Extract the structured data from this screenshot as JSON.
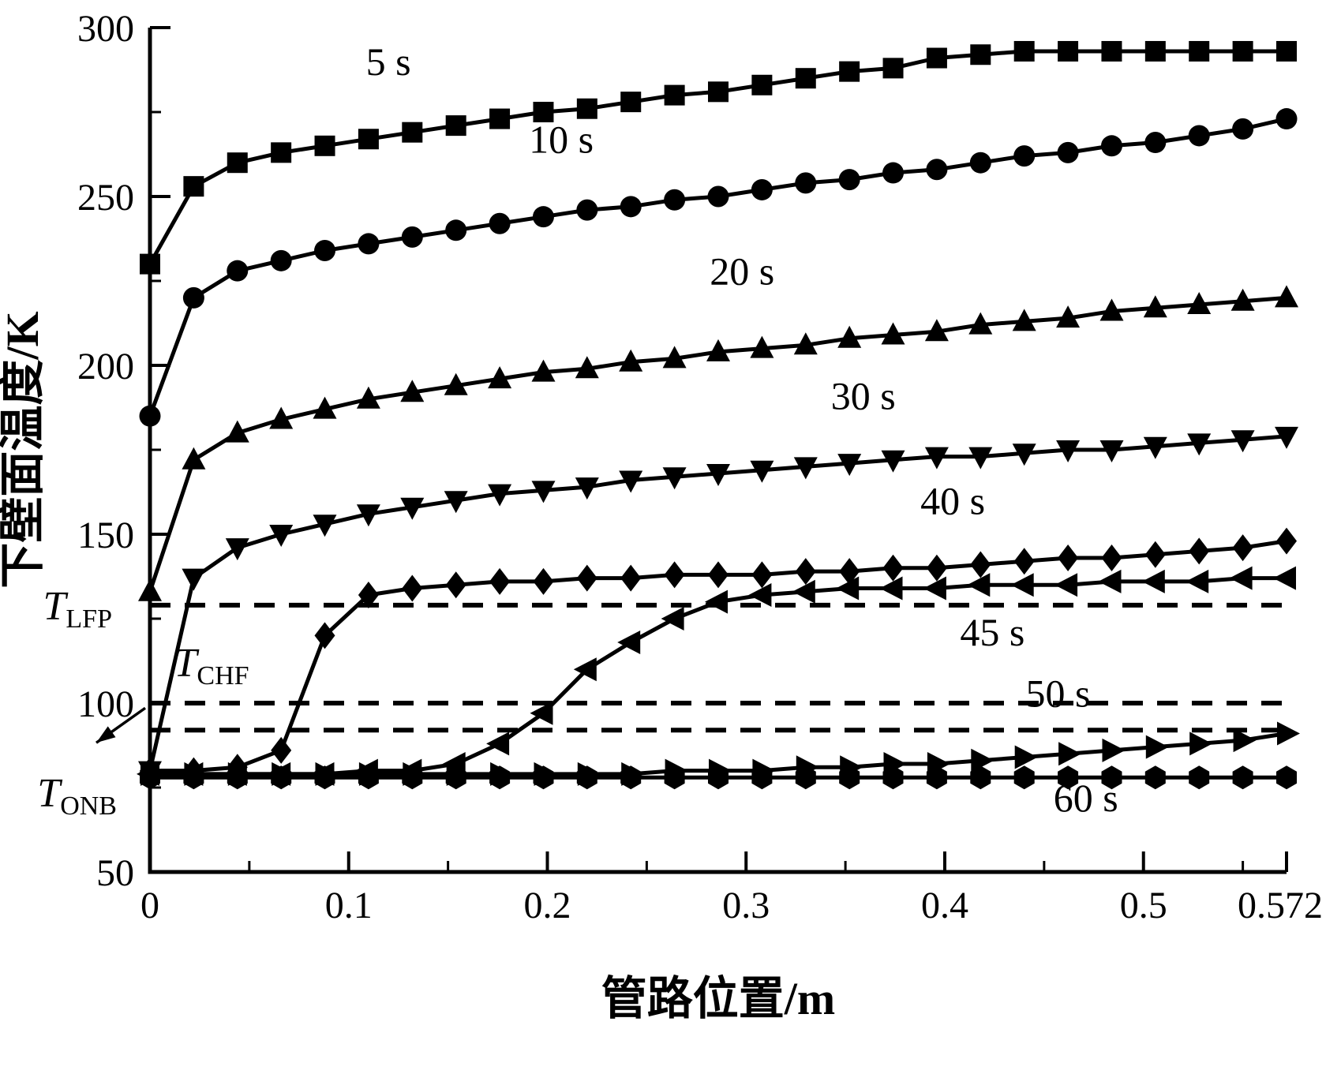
{
  "page": {
    "background": "#ffffff",
    "foreground": "#000000"
  },
  "chart_data": {
    "type": "line",
    "title": "",
    "xlabel": "管路位置/m",
    "ylabel": "下壁面温度/K",
    "xlim": [
      0,
      0.572
    ],
    "ylim": [
      50,
      300
    ],
    "x_ticks": [
      0,
      0.1,
      0.2,
      0.3,
      0.4,
      0.5,
      0.572
    ],
    "x_tick_labels": [
      "0",
      "0.1",
      "0.2",
      "0.3",
      "0.4",
      "0.5",
      "0.572"
    ],
    "x_minor_ticks": [
      0.05,
      0.15,
      0.25,
      0.35,
      0.45,
      0.55
    ],
    "y_ticks": [
      50,
      100,
      150,
      200,
      250,
      300
    ],
    "y_tick_labels": [
      "50",
      "100",
      "150",
      "200",
      "250",
      "300"
    ],
    "y_minor_ticks": [
      75,
      125,
      175,
      225,
      275
    ],
    "grid": false,
    "legend": "inline-labels",
    "line_color": "#000000",
    "x": [
      0,
      0.022,
      0.044,
      0.066,
      0.088,
      0.11,
      0.132,
      0.154,
      0.176,
      0.198,
      0.22,
      0.242,
      0.264,
      0.286,
      0.308,
      0.33,
      0.352,
      0.374,
      0.396,
      0.418,
      0.44,
      0.462,
      0.484,
      0.506,
      0.528,
      0.55,
      0.572
    ],
    "series": [
      {
        "name": "5 s",
        "marker": "square",
        "label_pos": [
          0.12,
          286
        ],
        "values": [
          230,
          253,
          260,
          263,
          265,
          267,
          269,
          271,
          273,
          275,
          276,
          278,
          280,
          281,
          283,
          285,
          287,
          288,
          291,
          292,
          293,
          293,
          293,
          293,
          293,
          293,
          293
        ]
      },
      {
        "name": "10 s",
        "marker": "circle",
        "label_pos": [
          0.207,
          263
        ],
        "values": [
          185,
          220,
          228,
          231,
          234,
          236,
          238,
          240,
          242,
          244,
          246,
          247,
          249,
          250,
          252,
          254,
          255,
          257,
          258,
          260,
          262,
          263,
          265,
          266,
          268,
          270,
          273
        ]
      },
      {
        "name": "20 s",
        "marker": "triangle-up",
        "label_pos": [
          0.298,
          224
        ],
        "values": [
          133,
          172,
          180,
          184,
          187,
          190,
          192,
          194,
          196,
          198,
          199,
          201,
          202,
          204,
          205,
          206,
          208,
          209,
          210,
          212,
          213,
          214,
          216,
          217,
          218,
          219,
          220
        ]
      },
      {
        "name": "30 s",
        "marker": "triangle-down",
        "label_pos": [
          0.359,
          187
        ],
        "values": [
          80,
          137,
          146,
          150,
          153,
          156,
          158,
          160,
          162,
          163,
          164,
          166,
          167,
          168,
          169,
          170,
          171,
          172,
          173,
          173,
          174,
          175,
          175,
          176,
          177,
          178,
          179
        ]
      },
      {
        "name": "40 s",
        "marker": "diamond",
        "label_pos": [
          0.404,
          156
        ],
        "values": [
          80,
          80,
          81,
          86,
          120,
          132,
          134,
          135,
          136,
          136,
          137,
          137,
          138,
          138,
          138,
          139,
          139,
          140,
          140,
          141,
          142,
          143,
          143,
          144,
          145,
          146,
          148
        ]
      },
      {
        "name": "45 s",
        "marker": "triangle-left",
        "label_pos": [
          0.424,
          117
        ],
        "values": [
          79,
          79,
          79,
          79,
          79,
          80,
          80,
          82,
          88,
          97,
          110,
          118,
          125,
          130,
          132,
          133,
          134,
          134,
          134,
          135,
          135,
          135,
          136,
          136,
          136,
          137,
          137
        ]
      },
      {
        "name": "50 s",
        "marker": "triangle-right",
        "label_pos": [
          0.457,
          99
        ],
        "values": [
          79,
          79,
          79,
          79,
          79,
          79,
          79,
          79,
          79,
          79,
          79,
          79,
          80,
          80,
          80,
          81,
          81,
          82,
          82,
          83,
          84,
          85,
          86,
          87,
          88,
          89,
          91
        ]
      },
      {
        "name": "60 s",
        "marker": "hexagon",
        "label_pos": [
          0.471,
          68
        ],
        "values": [
          78,
          78,
          78,
          78,
          78,
          78,
          78,
          78,
          78,
          78,
          78,
          78,
          78,
          78,
          78,
          78,
          78,
          78,
          78,
          78,
          78,
          78,
          78,
          78,
          78,
          78,
          78
        ]
      }
    ],
    "reference_lines": [
      {
        "name": "T_LFP",
        "main": "T",
        "sub": "LFP",
        "value": 129,
        "style": "dashed",
        "placement": "outside-left",
        "arrow": false
      },
      {
        "name": "T_CHF",
        "main": "T",
        "sub": "CHF",
        "value": 100,
        "style": "dashed",
        "placement": "inside",
        "label_pos": [
          0.031,
          108
        ],
        "arrow": false
      },
      {
        "name": "T_ONB",
        "main": "T",
        "sub": "ONB",
        "value": 92,
        "style": "dashed",
        "placement": "outside-bottom-left",
        "arrow": true
      }
    ]
  }
}
